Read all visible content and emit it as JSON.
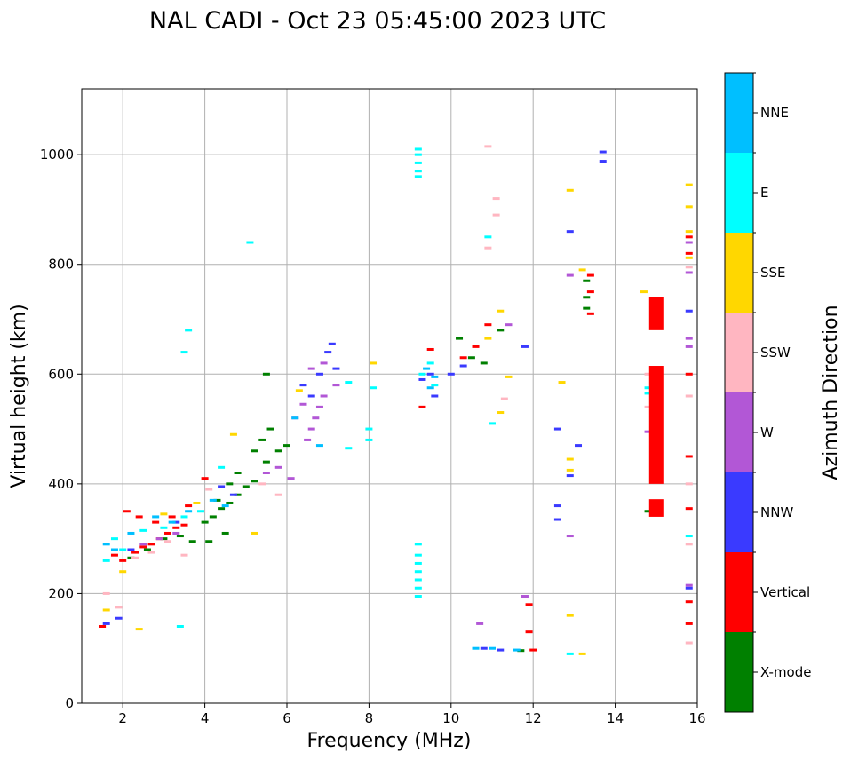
{
  "chart_data": {
    "type": "scatter",
    "title": "NAL CADI - Oct 23 05:45:00 2023 UTC",
    "xlabel": "Frequency (MHz)",
    "ylabel": "Virtual height (km)",
    "xlim": [
      1,
      16
    ],
    "ylim": [
      0,
      1120
    ],
    "xticks": [
      2,
      4,
      6,
      8,
      10,
      12,
      14,
      16
    ],
    "yticks": [
      0,
      200,
      400,
      600,
      800,
      1000
    ],
    "grid": true,
    "colorbar": {
      "label": "Azimuth Direction",
      "categories": [
        {
          "name": "X-mode",
          "color": "#008000"
        },
        {
          "name": "Vertical",
          "color": "#ff0000"
        },
        {
          "name": "NNW",
          "color": "#3a3aff"
        },
        {
          "name": "W",
          "color": "#b257d6"
        },
        {
          "name": "SSW",
          "color": "#ffb6c1"
        },
        {
          "name": "SSE",
          "color": "#ffd700"
        },
        {
          "name": "E",
          "color": "#00ffff"
        },
        {
          "name": "NNE",
          "color": "#00bfff"
        }
      ]
    },
    "series": [
      {
        "name": "X-mode",
        "points": [
          [
            2.2,
            265
          ],
          [
            2.6,
            280
          ],
          [
            3.0,
            300
          ],
          [
            3.4,
            305
          ],
          [
            3.7,
            295
          ],
          [
            4.0,
            330
          ],
          [
            4.1,
            295
          ],
          [
            4.2,
            340
          ],
          [
            4.4,
            355
          ],
          [
            4.6,
            365
          ],
          [
            4.8,
            380
          ],
          [
            5.0,
            395
          ],
          [
            5.2,
            405
          ],
          [
            5.5,
            440
          ],
          [
            5.8,
            460
          ],
          [
            6.0,
            470
          ],
          [
            4.6,
            400
          ],
          [
            4.8,
            420
          ],
          [
            5.2,
            460
          ],
          [
            5.4,
            480
          ],
          [
            5.6,
            500
          ],
          [
            4.3,
            370
          ],
          [
            4.5,
            310
          ],
          [
            5.5,
            600
          ],
          [
            10.2,
            665
          ],
          [
            10.5,
            630
          ],
          [
            10.8,
            620
          ],
          [
            11.2,
            680
          ],
          [
            11.7,
            96
          ],
          [
            13.3,
            740
          ],
          [
            13.3,
            770
          ],
          [
            13.3,
            720
          ],
          [
            14.8,
            350
          ]
        ]
      },
      {
        "name": "Vertical",
        "points": [
          [
            1.5,
            140
          ],
          [
            1.8,
            270
          ],
          [
            2.0,
            260
          ],
          [
            2.3,
            275
          ],
          [
            2.5,
            285
          ],
          [
            2.7,
            290
          ],
          [
            2.9,
            300
          ],
          [
            3.1,
            310
          ],
          [
            3.3,
            320
          ],
          [
            3.5,
            325
          ],
          [
            2.1,
            350
          ],
          [
            2.4,
            340
          ],
          [
            2.8,
            330
          ],
          [
            3.2,
            340
          ],
          [
            3.6,
            360
          ],
          [
            4.0,
            410
          ],
          [
            9.3,
            540
          ],
          [
            9.5,
            645
          ],
          [
            10.3,
            630
          ],
          [
            10.6,
            650
          ],
          [
            10.9,
            690
          ],
          [
            11.9,
            130
          ],
          [
            11.9,
            180
          ],
          [
            12.0,
            97
          ],
          [
            13.4,
            780
          ],
          [
            13.4,
            750
          ],
          [
            13.4,
            710
          ],
          [
            15.8,
            850
          ],
          [
            15.8,
            820
          ],
          [
            15.8,
            600
          ],
          [
            15.8,
            450
          ],
          [
            15.8,
            355
          ],
          [
            15.8,
            185
          ],
          [
            15.8,
            145
          ]
        ]
      },
      {
        "name": "NNW",
        "points": [
          [
            1.6,
            145
          ],
          [
            1.9,
            155
          ],
          [
            2.2,
            280
          ],
          [
            3.3,
            330
          ],
          [
            4.4,
            395
          ],
          [
            4.7,
            380
          ],
          [
            6.4,
            580
          ],
          [
            6.6,
            560
          ],
          [
            6.8,
            600
          ],
          [
            7.0,
            640
          ],
          [
            7.1,
            655
          ],
          [
            7.2,
            610
          ],
          [
            9.3,
            590
          ],
          [
            9.5,
            600
          ],
          [
            9.6,
            560
          ],
          [
            10.0,
            600
          ],
          [
            10.3,
            615
          ],
          [
            10.8,
            100
          ],
          [
            11.2,
            97
          ],
          [
            11.8,
            650
          ],
          [
            12.6,
            500
          ],
          [
            12.6,
            360
          ],
          [
            12.6,
            335
          ],
          [
            12.9,
            860
          ],
          [
            12.9,
            415
          ],
          [
            13.1,
            470
          ],
          [
            13.7,
            1005
          ],
          [
            13.7,
            988
          ],
          [
            15.8,
            715
          ],
          [
            15.8,
            210
          ]
        ]
      },
      {
        "name": "W",
        "points": [
          [
            2.5,
            290
          ],
          [
            2.9,
            300
          ],
          [
            3.3,
            310
          ],
          [
            5.5,
            420
          ],
          [
            5.8,
            430
          ],
          [
            6.1,
            410
          ],
          [
            6.2,
            520
          ],
          [
            6.4,
            545
          ],
          [
            6.5,
            480
          ],
          [
            6.6,
            500
          ],
          [
            6.7,
            520
          ],
          [
            6.8,
            540
          ],
          [
            6.9,
            560
          ],
          [
            6.6,
            610
          ],
          [
            6.9,
            620
          ],
          [
            7.2,
            580
          ],
          [
            10.7,
            145
          ],
          [
            11.4,
            690
          ],
          [
            11.8,
            195
          ],
          [
            12.9,
            780
          ],
          [
            12.9,
            305
          ],
          [
            14.8,
            495
          ],
          [
            15.8,
            840
          ],
          [
            15.8,
            785
          ],
          [
            15.8,
            665
          ],
          [
            15.8,
            650
          ],
          [
            15.8,
            215
          ]
        ]
      },
      {
        "name": "SSW",
        "points": [
          [
            1.6,
            200
          ],
          [
            1.9,
            175
          ],
          [
            2.3,
            265
          ],
          [
            2.7,
            275
          ],
          [
            3.1,
            295
          ],
          [
            3.5,
            270
          ],
          [
            4.1,
            390
          ],
          [
            5.4,
            400
          ],
          [
            5.8,
            380
          ],
          [
            10.9,
            1015
          ],
          [
            11.1,
            920
          ],
          [
            11.1,
            890
          ],
          [
            10.9,
            830
          ],
          [
            11.3,
            555
          ],
          [
            14.8,
            600
          ],
          [
            14.8,
            540
          ],
          [
            15.8,
            795
          ],
          [
            15.8,
            560
          ],
          [
            15.8,
            400
          ],
          [
            15.8,
            290
          ],
          [
            15.8,
            110
          ]
        ]
      },
      {
        "name": "SSE",
        "points": [
          [
            1.6,
            170
          ],
          [
            2.0,
            240
          ],
          [
            2.4,
            135
          ],
          [
            3.0,
            345
          ],
          [
            3.8,
            365
          ],
          [
            4.7,
            490
          ],
          [
            5.2,
            310
          ],
          [
            6.3,
            570
          ],
          [
            8.1,
            620
          ],
          [
            10.9,
            665
          ],
          [
            11.2,
            715
          ],
          [
            11.2,
            530
          ],
          [
            11.4,
            595
          ],
          [
            12.7,
            585
          ],
          [
            12.9,
            935
          ],
          [
            12.9,
            445
          ],
          [
            12.9,
            425
          ],
          [
            12.9,
            160
          ],
          [
            13.2,
            90
          ],
          [
            13.2,
            790
          ],
          [
            14.7,
            750
          ],
          [
            15.8,
            945
          ],
          [
            15.8,
            905
          ],
          [
            15.8,
            860
          ],
          [
            15.8,
            812
          ]
        ]
      },
      {
        "name": "E",
        "points": [
          [
            1.6,
            260
          ],
          [
            1.8,
            300
          ],
          [
            2.0,
            280
          ],
          [
            2.5,
            315
          ],
          [
            3.0,
            320
          ],
          [
            3.5,
            340
          ],
          [
            3.6,
            680
          ],
          [
            3.5,
            640
          ],
          [
            3.9,
            350
          ],
          [
            3.4,
            140
          ],
          [
            4.4,
            430
          ],
          [
            5.1,
            840
          ],
          [
            7.5,
            585
          ],
          [
            7.5,
            465
          ],
          [
            8.0,
            480
          ],
          [
            8.0,
            500
          ],
          [
            8.1,
            575
          ],
          [
            9.2,
            1010
          ],
          [
            9.2,
            1000
          ],
          [
            9.2,
            985
          ],
          [
            9.2,
            970
          ],
          [
            9.2,
            960
          ],
          [
            9.2,
            290
          ],
          [
            9.2,
            270
          ],
          [
            9.2,
            255
          ],
          [
            9.2,
            240
          ],
          [
            9.2,
            225
          ],
          [
            9.2,
            210
          ],
          [
            9.2,
            195
          ],
          [
            9.3,
            600
          ],
          [
            9.5,
            620
          ],
          [
            9.6,
            580
          ],
          [
            10.9,
            850
          ],
          [
            11.0,
            510
          ],
          [
            12.9,
            90
          ],
          [
            14.8,
            575
          ],
          [
            14.8,
            565
          ],
          [
            15.8,
            305
          ]
        ]
      },
      {
        "name": "NNE",
        "points": [
          [
            1.6,
            290
          ],
          [
            1.8,
            280
          ],
          [
            2.2,
            310
          ],
          [
            2.8,
            340
          ],
          [
            3.2,
            330
          ],
          [
            3.6,
            350
          ],
          [
            4.2,
            370
          ],
          [
            4.5,
            360
          ],
          [
            6.2,
            520
          ],
          [
            6.8,
            470
          ],
          [
            9.4,
            610
          ],
          [
            9.5,
            575
          ],
          [
            9.6,
            595
          ],
          [
            10.6,
            100
          ],
          [
            11.0,
            100
          ],
          [
            11.6,
            97
          ]
        ]
      }
    ]
  }
}
